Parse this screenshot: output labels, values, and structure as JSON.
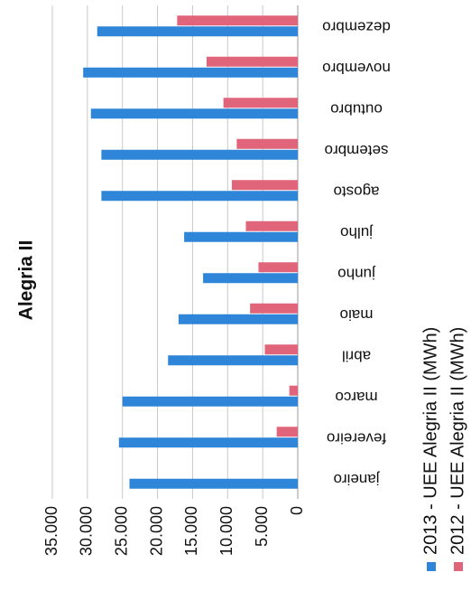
{
  "chart_data": {
    "type": "bar",
    "title": "Alegria II",
    "categories": [
      "janeiro",
      "fevereiro",
      "marco",
      "abril",
      "maio",
      "junho",
      "julho",
      "agosto",
      "setembro",
      "outubro",
      "novembro",
      "dezembro"
    ],
    "series": [
      {
        "name": "2013 - UEE Alegria II (MWh)",
        "color": "#2f86d8",
        "values": [
          24000,
          25500,
          25000,
          18500,
          17000,
          13500,
          16200,
          28000,
          28000,
          29500,
          30600,
          28600
        ]
      },
      {
        "name": "2012 - UEE Alegria II (MWh)",
        "color": "#e0657a",
        "values": [
          0,
          3000,
          1200,
          4700,
          6800,
          5600,
          7400,
          9400,
          8700,
          10600,
          13000,
          17200
        ]
      }
    ],
    "ylim": [
      0,
      35000
    ],
    "yticks": [
      {
        "value": 0,
        "label": "0"
      },
      {
        "value": 5000,
        "label": "5.000"
      },
      {
        "value": 10000,
        "label": "10.000"
      },
      {
        "value": 15000,
        "label": "15.000"
      },
      {
        "value": 20000,
        "label": "20.000"
      },
      {
        "value": 25000,
        "label": "25.000"
      },
      {
        "value": 30000,
        "label": "30.000"
      },
      {
        "value": 35000,
        "label": "35.000"
      }
    ],
    "grid": true
  }
}
